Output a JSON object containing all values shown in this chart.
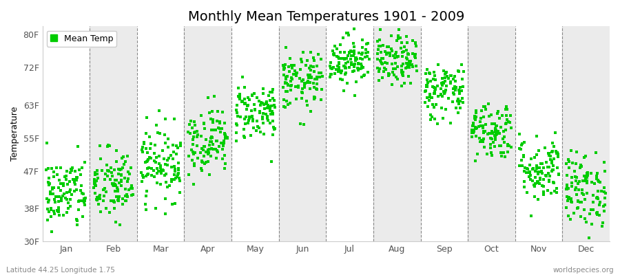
{
  "title": "Monthly Mean Temperatures 1901 - 2009",
  "ylabel": "Temperature",
  "xlabel_labels": [
    "Jan",
    "Feb",
    "Mar",
    "Apr",
    "May",
    "Jun",
    "Jul",
    "Aug",
    "Sep",
    "Oct",
    "Nov",
    "Dec"
  ],
  "subtitle_left": "Latitude 44.25 Longitude 1.75",
  "subtitle_right": "worldspecies.org",
  "legend_label": "Mean Temp",
  "ylim": [
    30,
    82
  ],
  "yticks": [
    30,
    38,
    47,
    55,
    63,
    72,
    80
  ],
  "ytick_labels": [
    "30F",
    "38F",
    "47F",
    "55F",
    "63F",
    "72F",
    "80F"
  ],
  "dot_color": "#00cc00",
  "dot_size": 7,
  "bg_color": "#ffffff",
  "band_colors": [
    "#ffffff",
    "#ebebeb"
  ],
  "dashed_line_color": "#888888",
  "title_fontsize": 14,
  "label_fontsize": 9,
  "tick_fontsize": 9,
  "legend_fontsize": 9,
  "n_years": 109,
  "monthly_means_f": [
    41.5,
    43.5,
    49.0,
    54.5,
    61.5,
    68.5,
    74.0,
    73.5,
    66.5,
    57.0,
    47.5,
    42.5
  ],
  "monthly_stds_f": [
    4.5,
    4.5,
    4.5,
    4.0,
    3.5,
    3.5,
    3.0,
    3.0,
    3.5,
    3.5,
    4.0,
    4.5
  ],
  "seed": 42
}
